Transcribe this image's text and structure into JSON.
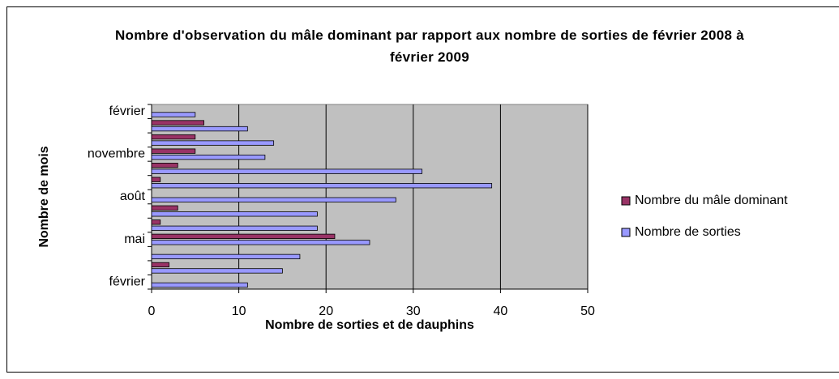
{
  "chart_data": {
    "type": "barh",
    "title": "Nombre d'observation du mâle dominant par rapport aux nombre de sorties de février 2008 à février 2009",
    "x_label": "Nombre de sorties et de dauphins",
    "y_label": "Nombre de mois",
    "categories": [
      "février",
      null,
      null,
      "mai",
      null,
      null,
      "août",
      null,
      null,
      "novembre",
      null,
      null,
      "février"
    ],
    "series": [
      {
        "name": "Nombre du mâle dominant",
        "color": "#993366",
        "values": [
          0,
          2,
          0,
          21,
          1,
          3,
          0,
          1,
          3,
          5,
          5,
          6,
          0
        ]
      },
      {
        "name": "Nombre de sorties",
        "color": "#9999ff",
        "values": [
          11,
          15,
          17,
          25,
          19,
          19,
          28,
          39,
          31,
          13,
          14,
          11,
          5
        ]
      }
    ],
    "xlim": [
      0,
      50
    ],
    "xticks": [
      0,
      10,
      20,
      30,
      40,
      50
    ],
    "grid": true,
    "legend": "right"
  }
}
